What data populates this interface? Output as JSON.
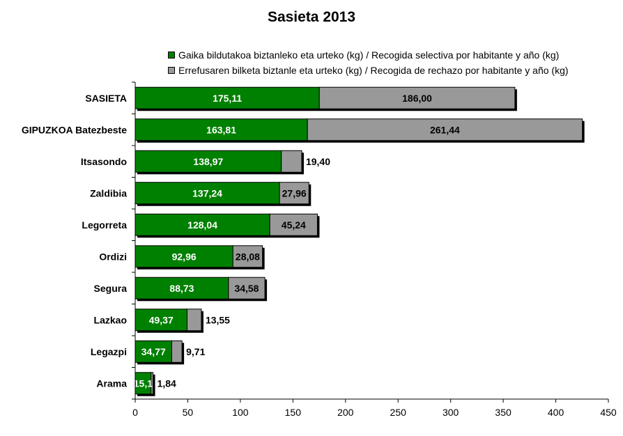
{
  "chart_data": {
    "type": "bar",
    "orientation": "horizontal",
    "stacked": true,
    "title": "Sasieta 2013",
    "categories": [
      "SASIETA",
      "GIPUZKOA Batezbeste",
      "Itsasondo",
      "Zaldibia",
      "Legorreta",
      "Ordizi",
      "Segura",
      "Lazkao",
      "Legazpi",
      "Arama"
    ],
    "series": [
      {
        "name": "Gaika bildutakoa biztanleko eta urteko (kg) / Recogida selectiva por habitante y año (kg)",
        "color": "#008000",
        "values": [
          175.11,
          163.81,
          138.97,
          137.24,
          128.04,
          92.96,
          88.73,
          49.37,
          34.77,
          15.1
        ],
        "labels": [
          "175,11",
          "163,81",
          "138,97",
          "137,24",
          "128,04",
          "92,96",
          "88,73",
          "49,37",
          "34,77",
          "15,1"
        ]
      },
      {
        "name": "Errefusaren bilketa biztanle eta urteko (kg) / Recogida de rechazo por habitante y año (kg)",
        "color": "#999999",
        "values": [
          186.0,
          261.44,
          19.4,
          27.96,
          45.24,
          28.08,
          34.58,
          13.55,
          9.71,
          1.84
        ],
        "labels": [
          "186,00",
          "261,44",
          "19,40",
          "27,96",
          "45,24",
          "28,08",
          "34,58",
          "13,55",
          "9,71",
          "1,84"
        ]
      }
    ],
    "xlim": [
      0,
      450
    ],
    "xticks": [
      0,
      50,
      100,
      150,
      200,
      250,
      300,
      350,
      400,
      450
    ],
    "xlabel": "",
    "ylabel": "",
    "grid": false,
    "legend_position": "top-right"
  }
}
